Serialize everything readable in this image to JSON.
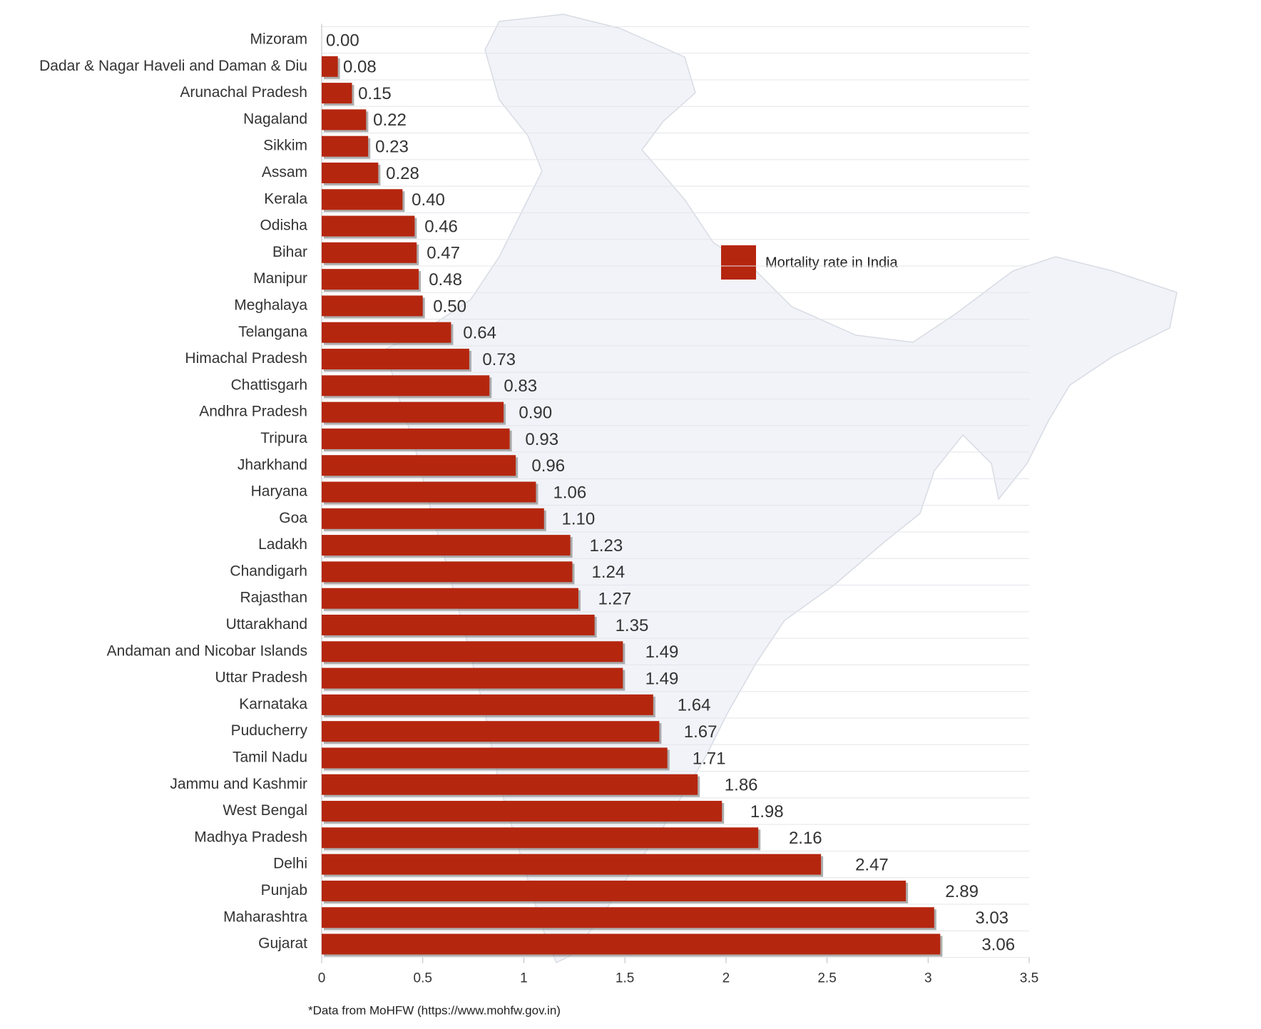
{
  "chart_data": {
    "type": "hbar",
    "categories": [
      "Mizoram",
      "Dadar & Nagar Haveli and Daman & Diu",
      "Arunachal Pradesh",
      "Nagaland",
      "Sikkim",
      "Assam",
      "Kerala",
      "Odisha",
      "Bihar",
      "Manipur",
      "Meghalaya",
      "Telangana",
      "Himachal Pradesh",
      "Chattisgarh",
      "Andhra Pradesh",
      "Tripura",
      "Jharkhand",
      "Haryana",
      "Goa",
      "Ladakh",
      "Chandigarh",
      "Rajasthan",
      "Uttarakhand",
      "Andaman and Nicobar Islands",
      "Uttar Pradesh",
      "Karnataka",
      "Puducherry",
      "Tamil Nadu",
      "Jammu and Kashmir",
      "West Bengal",
      "Madhya Pradesh",
      "Delhi",
      "Punjab",
      "Maharashtra",
      "Gujarat"
    ],
    "series": [
      {
        "name": "Mortality rate in India",
        "color": "#b5260f",
        "values": [
          0,
          0.08,
          0.15,
          0.22,
          0.23,
          0.28,
          0.4,
          0.46,
          0.47,
          0.48,
          0.5,
          0.64,
          0.73,
          0.83,
          0.9,
          0.93,
          0.96,
          1.06,
          1.1,
          1.23,
          1.24,
          1.27,
          1.35,
          1.49,
          1.49,
          1.64,
          1.67,
          1.71,
          1.86,
          1.98,
          2.16,
          2.47,
          2.89,
          3.03,
          3.06
        ],
        "value_labels": [
          "0.00",
          "0.08",
          "0.15",
          "0.22",
          "0.23",
          "0.28",
          "0.40",
          "0.46",
          "0.47",
          "0.48",
          "0.50",
          "0.64",
          "0.73",
          "0.83",
          "0.90",
          "0.93",
          "0.96",
          "1.06",
          "1.10",
          "1.23",
          "1.24",
          "1.27",
          "1.35",
          "1.49",
          "1.49",
          "1.64",
          "1.67",
          "1.71",
          "1.86",
          "1.98",
          "2.16",
          "2.47",
          "2.89",
          "3.03",
          "3.06"
        ]
      }
    ],
    "xlim": [
      0,
      3.5
    ],
    "xticks": [
      0,
      0.5,
      1,
      1.5,
      2,
      2.5,
      3,
      3.5
    ],
    "legend": "right",
    "footnote": "*Data from MoHFW (https://www.mohfw.gov.in)"
  }
}
